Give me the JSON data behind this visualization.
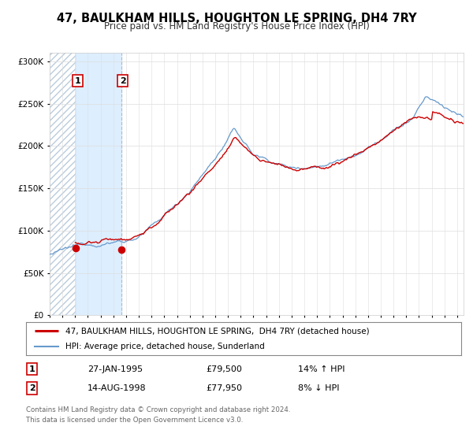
{
  "title": "47, BAULKHAM HILLS, HOUGHTON LE SPRING, DH4 7RY",
  "subtitle": "Price paid vs. HM Land Registry's House Price Index (HPI)",
  "legend_label_red": "47, BAULKHAM HILLS, HOUGHTON LE SPRING,  DH4 7RY (detached house)",
  "legend_label_blue": "HPI: Average price, detached house, Sunderland",
  "transaction1_date": "27-JAN-1995",
  "transaction1_price": "£79,500",
  "transaction1_hpi": "14% ↑ HPI",
  "transaction2_date": "14-AUG-1998",
  "transaction2_price": "£77,950",
  "transaction2_hpi": "8% ↓ HPI",
  "footer1": "Contains HM Land Registry data © Crown copyright and database right 2024.",
  "footer2": "This data is licensed under the Open Government Licence v3.0.",
  "red_color": "#cc0000",
  "blue_color": "#6699cc",
  "shaded_color": "#ddeeff",
  "transaction1_x": 1995.07,
  "transaction2_x": 1998.62,
  "transaction1_y": 79500,
  "transaction2_y": 77950,
  "ylim_max": 310000,
  "xlim_min": 1993.0,
  "xlim_max": 2025.5,
  "yticks": [
    0,
    50000,
    100000,
    150000,
    200000,
    250000,
    300000
  ],
  "xtick_start": 1993,
  "xtick_end": 2025,
  "background_color": "#ffffff"
}
